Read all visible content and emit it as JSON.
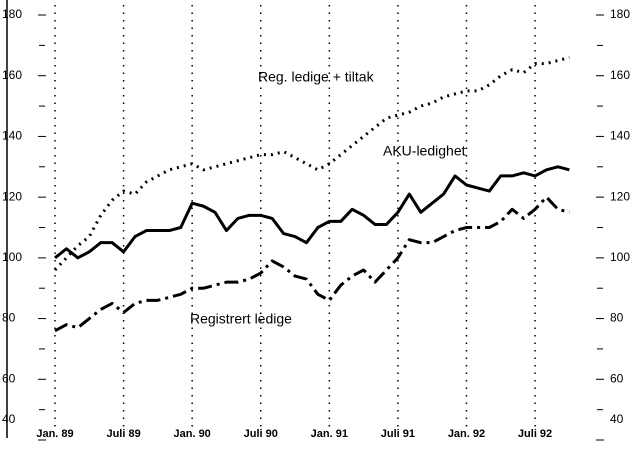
{
  "chart_data": {
    "type": "line",
    "categories": [
      "Jan. 89",
      null,
      null,
      null,
      null,
      null,
      "Juli 89",
      null,
      null,
      null,
      null,
      null,
      "Jan. 90",
      null,
      null,
      null,
      null,
      null,
      "Juli 90",
      null,
      null,
      null,
      null,
      null,
      "Jan. 91",
      null,
      null,
      null,
      null,
      null,
      "Juli 91",
      null,
      null,
      null,
      null,
      null,
      "Jan. 92",
      null,
      null,
      null,
      null,
      null,
      "Juli 92",
      null,
      null,
      null
    ],
    "series": [
      {
        "name": "Reg. ledige + tiltak",
        "color": "#000",
        "dash": "dotted",
        "values": [
          96,
          100,
          104,
          107,
          114,
          119,
          122,
          121,
          125,
          127,
          129,
          130,
          131,
          129,
          130,
          131,
          132,
          133,
          134,
          134,
          135,
          133,
          131,
          129,
          131,
          134,
          137,
          140,
          143,
          146,
          147,
          148,
          150,
          151,
          153,
          154,
          155,
          155,
          157,
          160,
          162,
          161,
          164,
          164,
          165,
          166
        ]
      },
      {
        "name": "AKU-ledighet",
        "color": "#000",
        "dash": "solid",
        "values": [
          100,
          103,
          100,
          102,
          105,
          105,
          102,
          107,
          109,
          109,
          109,
          110,
          118,
          117,
          115,
          109,
          113,
          114,
          114,
          113,
          108,
          107,
          105,
          110,
          112,
          112,
          116,
          114,
          111,
          111,
          115,
          121,
          115,
          118,
          121,
          127,
          124,
          123,
          122,
          127,
          127,
          128,
          127,
          129,
          130,
          129
        ]
      },
      {
        "name": "Registrert ledige",
        "color": "#000",
        "dash": "dashdot",
        "values": [
          76,
          78,
          77,
          80,
          83,
          85,
          82,
          85,
          86,
          86,
          87,
          88,
          90,
          90,
          91,
          92,
          92,
          93,
          95,
          99,
          97,
          94,
          93,
          88,
          86,
          91,
          94,
          96,
          92,
          96,
          100,
          106,
          105,
          105,
          107,
          109,
          110,
          110,
          110,
          112,
          116,
          113,
          116,
          120,
          116,
          115
        ]
      }
    ],
    "ylim": [
      40,
      180
    ],
    "yticks": [
      40,
      60,
      80,
      100,
      120,
      140,
      160,
      180
    ],
    "grid": false
  }
}
